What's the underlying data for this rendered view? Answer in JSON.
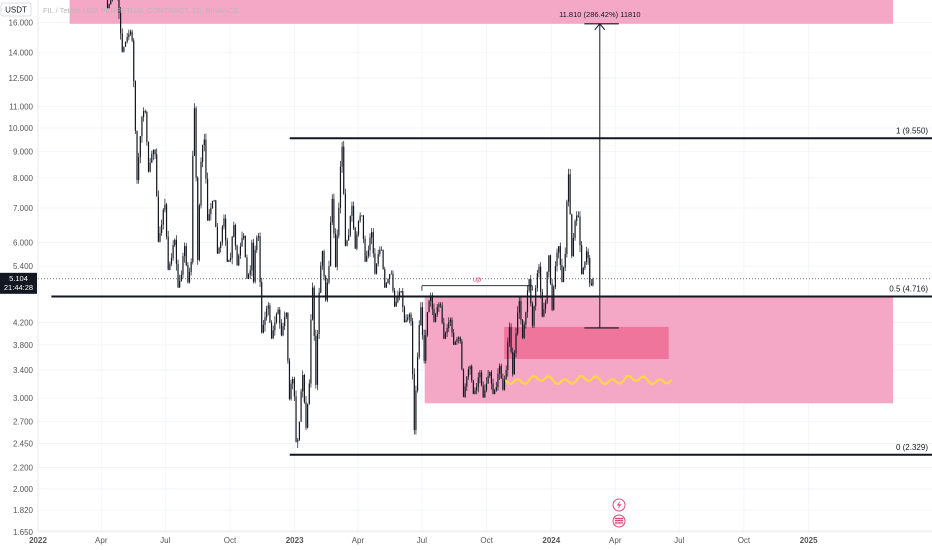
{
  "chart_data": {
    "type": "candlestick",
    "symbol_title": "FIL / Tether USD PERPETUAL CONTRACT, 1D, BINANCE",
    "currency_button": "USDT",
    "price_scale": "log",
    "ylim": [
      1.6,
      18.5
    ],
    "y_ticks": [
      "16.000",
      "14.000",
      "12.500",
      "11.000",
      "10.000",
      "9.000",
      "8.000",
      "7.000",
      "6.000",
      "5.400",
      "4.200",
      "3.800",
      "3.400",
      "3.000",
      "2.700",
      "2.450",
      "2.200",
      "2.000",
      "1.820",
      "1.650"
    ],
    "x_ticks": [
      "2022",
      "Apr",
      "Jul",
      "Oct",
      "2023",
      "Apr",
      "Jul",
      "Oct",
      "2024",
      "Apr",
      "Jul",
      "Oct",
      "2025"
    ],
    "x_range": [
      "2022-01-01",
      "2025-05-01"
    ],
    "current_price": {
      "value": "5.104",
      "countdown": "21:44:28",
      "numeric": 5.104
    },
    "fib_levels": [
      {
        "label": "1 (9.550)",
        "price": 9.55,
        "from": "2022-12-25",
        "to": "2025-05-01"
      },
      {
        "label": "0.5 (4.716)",
        "price": 4.716,
        "from": "2022-01-20",
        "to": "2025-05-01"
      },
      {
        "label": "0 (2.329)",
        "price": 2.329,
        "from": "2022-12-25",
        "to": "2025-05-01"
      }
    ],
    "target": {
      "label": "11.810 (286.42%) 11810",
      "from_price": 4.1,
      "to_price": 15.91,
      "date": "2024-03-10",
      "tick_from": "2024-02-17",
      "tick_to": "2024-04-06"
    },
    "zones": [
      {
        "id": "top-zone",
        "from": "2022-02-15",
        "to": "2025-05-01",
        "low": 15.91,
        "high": 18.5,
        "color": "#f5a7c6"
      },
      {
        "id": "demand-zone",
        "from": "2023-07-05",
        "to": "2025-05-01",
        "low": 2.93,
        "high": 4.72,
        "color": "#f5a7c6"
      },
      {
        "id": "inner-zone",
        "from": "2023-10-26",
        "to": "2024-06-16",
        "low": 3.57,
        "high": 4.12,
        "color": "#ef759d"
      }
    ],
    "up_label": {
      "text": "up",
      "from": "2023-07-01",
      "to": "2023-12-05",
      "price": 4.95
    },
    "colors": {
      "grid": "#f0f3fa",
      "candle": "#131722",
      "wave": "#ffd93b",
      "label_bg": "#131722"
    },
    "candles_weekly": [
      {
        "d": "2022-01-03",
        "o": 30.0,
        "h": 32.0,
        "c": 25.0,
        "l": 24.0
      },
      {
        "d": "2022-01-24",
        "o": 25.0,
        "h": 27.0,
        "c": 21.5,
        "l": 20.0
      },
      {
        "d": "2022-02-14",
        "o": 21.5,
        "h": 23.0,
        "c": 19.5,
        "l": 18.5
      },
      {
        "d": "2022-03-07",
        "o": 19.5,
        "h": 22.5,
        "c": 20.0,
        "l": 18.0
      },
      {
        "d": "2022-03-28",
        "o": 20.0,
        "h": 21.5,
        "c": 18.0,
        "l": 17.0
      },
      {
        "d": "2022-04-18",
        "o": 18.0,
        "h": 18.6,
        "c": 15.0,
        "l": 14.0
      },
      {
        "d": "2022-05-09",
        "o": 15.0,
        "h": 15.5,
        "c": 10.5,
        "l": 7.8
      },
      {
        "d": "2022-05-30",
        "o": 10.5,
        "h": 11.0,
        "c": 8.9,
        "l": 8.2
      },
      {
        "d": "2022-06-13",
        "o": 8.9,
        "h": 9.2,
        "c": 6.5,
        "l": 6.0
      },
      {
        "d": "2022-06-27",
        "o": 6.5,
        "h": 7.3,
        "c": 5.6,
        "l": 5.3
      },
      {
        "d": "2022-07-11",
        "o": 5.6,
        "h": 6.2,
        "c": 5.2,
        "l": 4.9
      },
      {
        "d": "2022-07-25",
        "o": 5.2,
        "h": 6.0,
        "c": 5.5,
        "l": 5.0
      },
      {
        "d": "2022-08-08",
        "o": 5.5,
        "h": 11.5,
        "c": 8.6,
        "l": 5.4
      },
      {
        "d": "2022-08-22",
        "o": 8.6,
        "h": 9.8,
        "c": 7.0,
        "l": 6.6
      },
      {
        "d": "2022-09-05",
        "o": 7.0,
        "h": 7.4,
        "c": 6.0,
        "l": 5.7
      },
      {
        "d": "2022-09-19",
        "o": 6.0,
        "h": 6.8,
        "c": 5.6,
        "l": 5.5
      },
      {
        "d": "2022-10-03",
        "o": 5.6,
        "h": 6.6,
        "c": 5.9,
        "l": 5.4
      },
      {
        "d": "2022-10-17",
        "o": 5.9,
        "h": 6.3,
        "c": 5.3,
        "l": 5.1
      },
      {
        "d": "2022-10-31",
        "o": 5.3,
        "h": 6.1,
        "c": 5.8,
        "l": 5.0
      },
      {
        "d": "2022-11-07",
        "o": 5.8,
        "h": 6.4,
        "c": 4.3,
        "l": 4.0
      },
      {
        "d": "2022-11-21",
        "o": 4.3,
        "h": 4.6,
        "c": 4.2,
        "l": 3.9
      },
      {
        "d": "2022-12-05",
        "o": 4.2,
        "h": 4.5,
        "c": 4.3,
        "l": 3.95
      },
      {
        "d": "2022-12-19",
        "o": 4.3,
        "h": 4.4,
        "c": 3.2,
        "l": 2.9
      },
      {
        "d": "2022-12-28",
        "o": 3.2,
        "h": 3.3,
        "c": 2.7,
        "l": 2.33
      },
      {
        "d": "2023-01-09",
        "o": 2.7,
        "h": 3.4,
        "c": 3.2,
        "l": 2.6
      },
      {
        "d": "2023-01-23",
        "o": 3.2,
        "h": 5.1,
        "c": 4.8,
        "l": 3.1
      },
      {
        "d": "2023-02-06",
        "o": 4.8,
        "h": 5.9,
        "c": 5.4,
        "l": 4.6
      },
      {
        "d": "2023-02-20",
        "o": 5.4,
        "h": 7.5,
        "c": 7.0,
        "l": 5.3
      },
      {
        "d": "2023-03-06",
        "o": 7.0,
        "h": 9.55,
        "c": 6.2,
        "l": 5.9
      },
      {
        "d": "2023-03-20",
        "o": 6.2,
        "h": 7.2,
        "c": 6.6,
        "l": 5.8
      },
      {
        "d": "2023-04-03",
        "o": 6.6,
        "h": 6.9,
        "c": 5.8,
        "l": 5.5
      },
      {
        "d": "2023-04-17",
        "o": 5.8,
        "h": 6.4,
        "c": 5.7,
        "l": 5.2
      },
      {
        "d": "2023-05-01",
        "o": 5.7,
        "h": 5.9,
        "c": 5.1,
        "l": 4.9
      },
      {
        "d": "2023-05-15",
        "o": 5.1,
        "h": 5.3,
        "c": 4.7,
        "l": 4.5
      },
      {
        "d": "2023-05-29",
        "o": 4.7,
        "h": 4.9,
        "c": 4.3,
        "l": 4.2
      },
      {
        "d": "2023-06-12",
        "o": 4.3,
        "h": 4.4,
        "c": 3.6,
        "l": 2.55
      },
      {
        "d": "2023-06-26",
        "o": 3.6,
        "h": 4.6,
        "c": 4.4,
        "l": 3.5
      },
      {
        "d": "2023-07-10",
        "o": 4.4,
        "h": 4.8,
        "c": 4.5,
        "l": 4.2
      },
      {
        "d": "2023-07-24",
        "o": 4.5,
        "h": 4.6,
        "c": 4.1,
        "l": 3.9
      },
      {
        "d": "2023-08-07",
        "o": 4.1,
        "h": 4.3,
        "c": 3.9,
        "l": 3.8
      },
      {
        "d": "2023-08-21",
        "o": 3.9,
        "h": 3.95,
        "c": 3.3,
        "l": 3.0
      },
      {
        "d": "2023-09-04",
        "o": 3.3,
        "h": 3.5,
        "c": 3.15,
        "l": 3.05
      },
      {
        "d": "2023-09-18",
        "o": 3.15,
        "h": 3.4,
        "c": 3.2,
        "l": 3.0
      },
      {
        "d": "2023-10-02",
        "o": 3.2,
        "h": 3.4,
        "c": 3.15,
        "l": 3.05
      },
      {
        "d": "2023-10-16",
        "o": 3.15,
        "h": 3.5,
        "c": 3.4,
        "l": 3.1
      },
      {
        "d": "2023-10-30",
        "o": 3.4,
        "h": 4.2,
        "c": 4.0,
        "l": 3.3
      },
      {
        "d": "2023-11-13",
        "o": 4.0,
        "h": 4.7,
        "c": 4.4,
        "l": 3.9
      },
      {
        "d": "2023-11-27",
        "o": 4.4,
        "h": 5.2,
        "c": 4.9,
        "l": 4.1
      },
      {
        "d": "2023-12-11",
        "o": 4.9,
        "h": 5.5,
        "c": 4.6,
        "l": 4.3
      },
      {
        "d": "2023-12-25",
        "o": 4.6,
        "h": 5.8,
        "c": 5.4,
        "l": 4.4
      },
      {
        "d": "2024-01-08",
        "o": 5.4,
        "h": 6.0,
        "c": 5.7,
        "l": 5.0
      },
      {
        "d": "2024-01-22",
        "o": 5.7,
        "h": 8.4,
        "c": 6.6,
        "l": 5.6
      },
      {
        "d": "2024-02-05",
        "o": 6.6,
        "h": 6.9,
        "c": 5.5,
        "l": 5.2
      },
      {
        "d": "2024-02-19",
        "o": 5.5,
        "h": 5.9,
        "c": 5.104,
        "l": 4.85
      }
    ]
  }
}
